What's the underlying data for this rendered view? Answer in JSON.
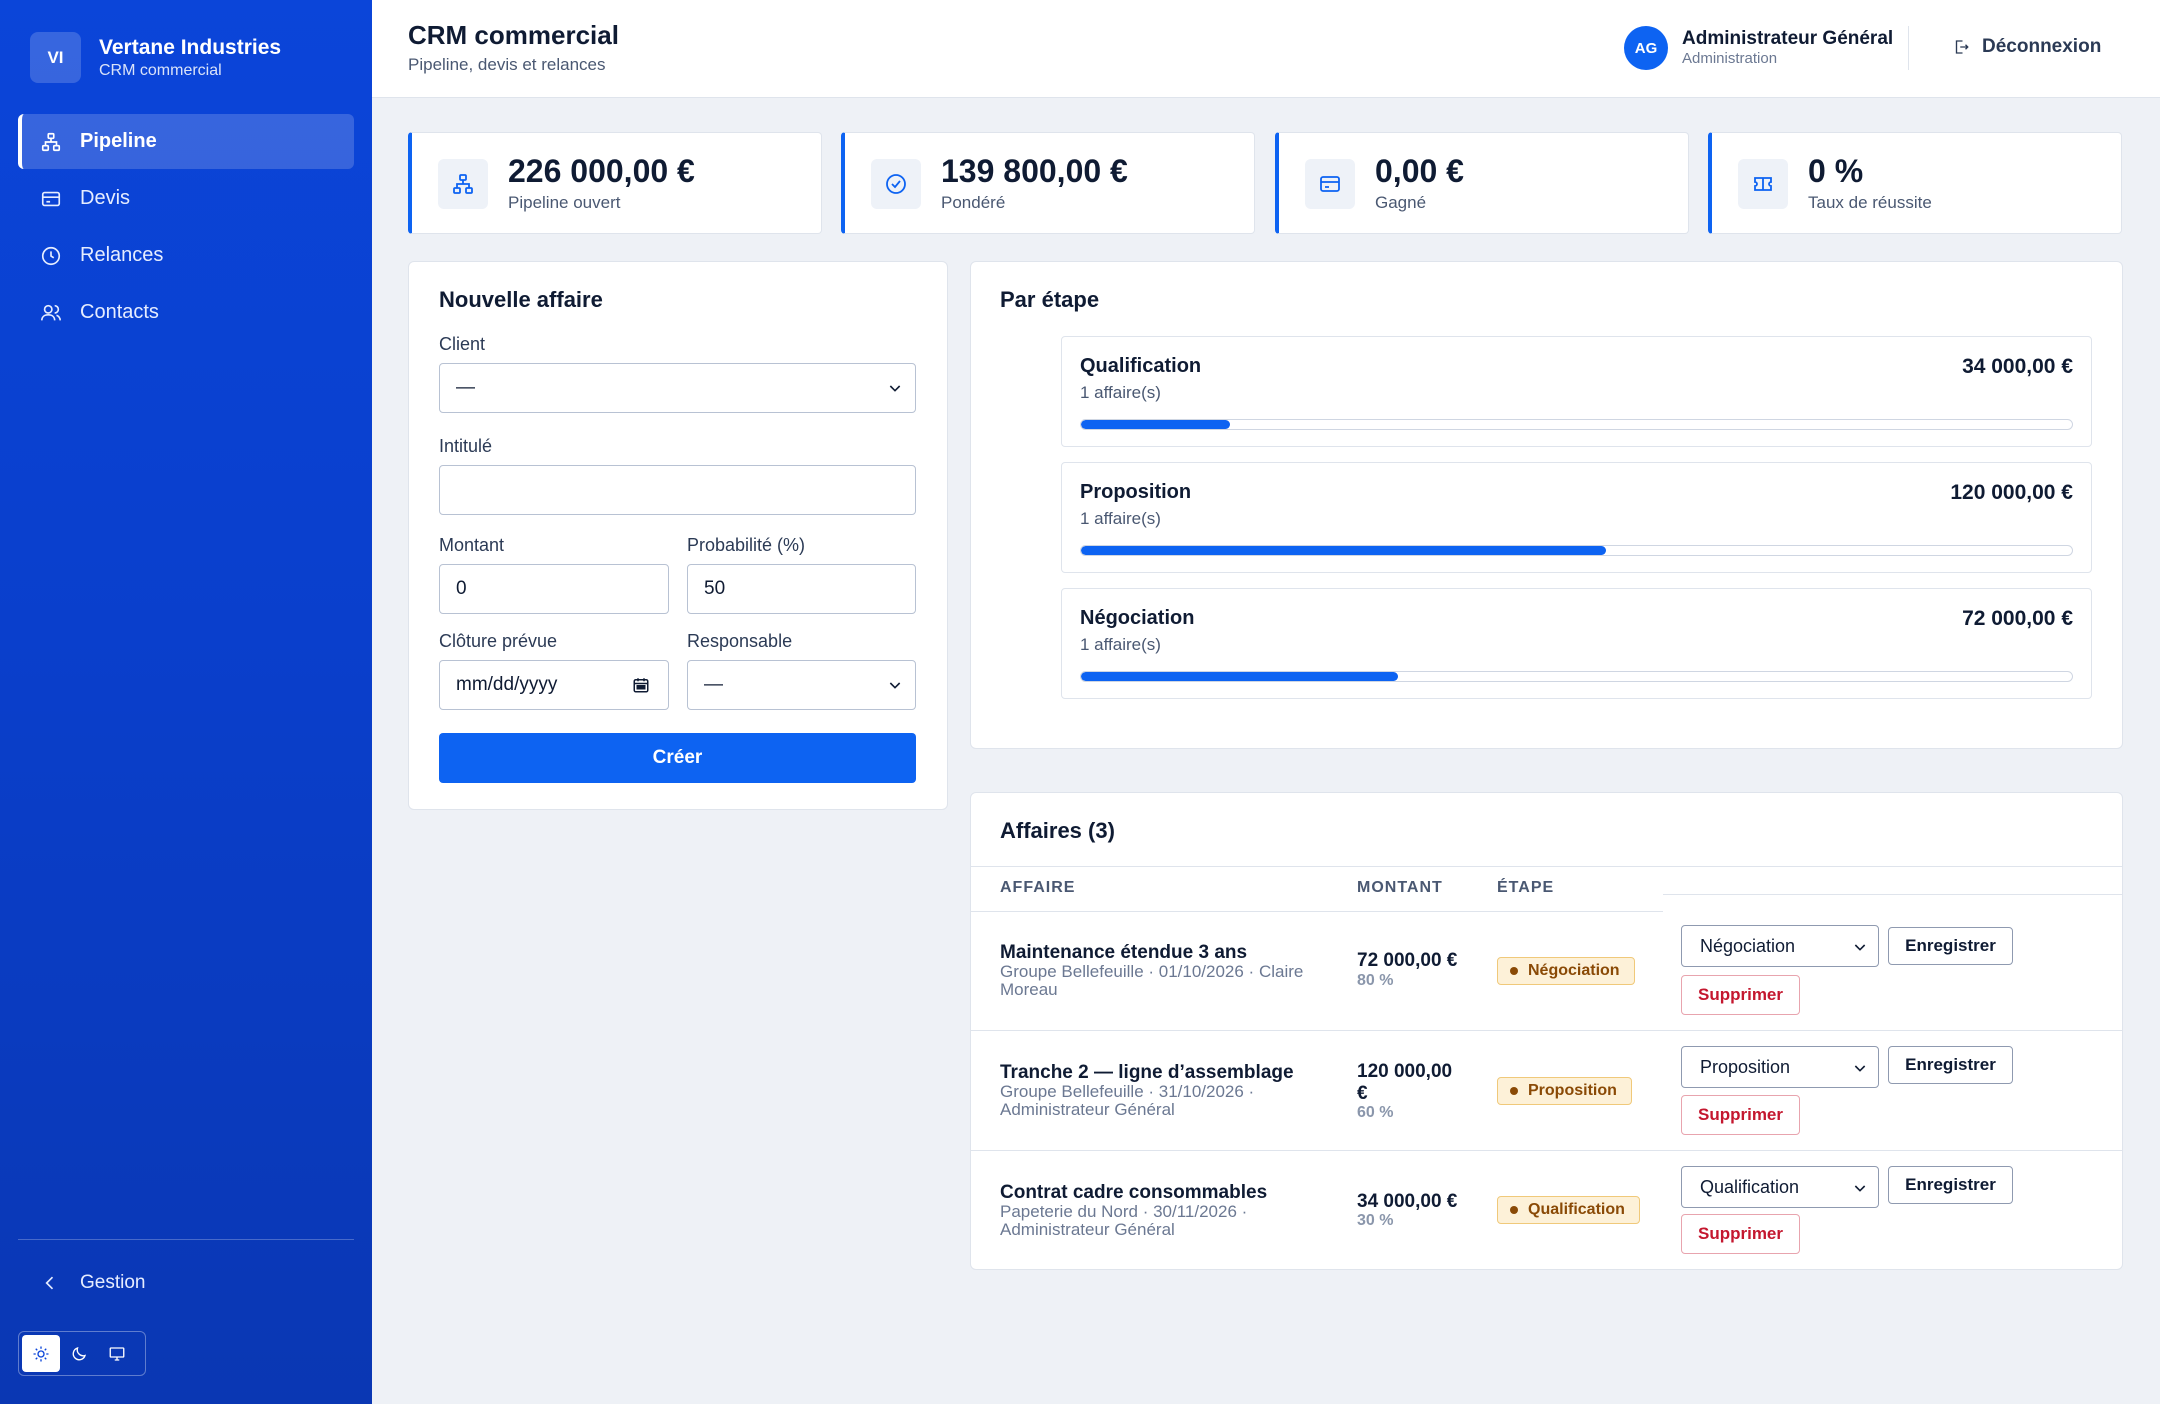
{
  "brand": {
    "initials": "VI",
    "name": "Vertane Industries",
    "subtitle": "CRM commercial"
  },
  "sidebar": {
    "items": [
      {
        "label": "Pipeline",
        "icon": "pipeline-icon",
        "active": true
      },
      {
        "label": "Devis",
        "icon": "card-icon",
        "active": false
      },
      {
        "label": "Relances",
        "icon": "clock-icon",
        "active": false
      },
      {
        "label": "Contacts",
        "icon": "users-icon",
        "active": false
      }
    ],
    "back_label": "Gestion",
    "theme_modes": [
      "light",
      "dark",
      "system"
    ],
    "theme_selected": "light"
  },
  "header": {
    "title": "CRM commercial",
    "subtitle": "Pipeline, devis et relances",
    "user": {
      "initials": "AG",
      "name": "Administrateur Général",
      "role": "Administration"
    },
    "logout_label": "Déconnexion"
  },
  "kpis": [
    {
      "value": "226 000,00 €",
      "label": "Pipeline ouvert",
      "icon": "pipeline-icon"
    },
    {
      "value": "139 800,00 €",
      "label": "Pondéré",
      "icon": "check-circle-icon"
    },
    {
      "value": "0,00 €",
      "label": "Gagné",
      "icon": "card-icon"
    },
    {
      "value": "0 %",
      "label": "Taux de réussite",
      "icon": "ticket-icon"
    }
  ],
  "form": {
    "title": "Nouvelle affaire",
    "client_label": "Client",
    "client_value": "—",
    "intitule_label": "Intitulé",
    "intitule_value": "",
    "montant_label": "Montant",
    "montant_value": "0",
    "probabilite_label": "Probabilité (%)",
    "probabilite_value": "50",
    "cloture_label": "Clôture prévue",
    "cloture_placeholder": "mm/dd/yyyy",
    "responsable_label": "Responsable",
    "responsable_value": "—",
    "submit_label": "Créer"
  },
  "stages": {
    "title": "Par étape",
    "items": [
      {
        "name": "Qualification",
        "count": "1 affaire(s)",
        "amount": "34 000,00 €",
        "share": 0.15
      },
      {
        "name": "Proposition",
        "count": "1 affaire(s)",
        "amount": "120 000,00 €",
        "share": 0.53
      },
      {
        "name": "Négociation",
        "count": "1 affaire(s)",
        "amount": "72 000,00 €",
        "share": 0.32
      }
    ]
  },
  "deals": {
    "title": "Affaires (3)",
    "columns": [
      "AFFAIRE",
      "MONTANT",
      "ÉTAPE"
    ],
    "save_label": "Enregistrer",
    "delete_label": "Supprimer",
    "rows": [
      {
        "title": "Maintenance étendue 3 ans",
        "meta": "Groupe Bellefeuille · 01/10/2026 · Claire Moreau",
        "amount": "72 000,00 €",
        "probability": "80 %",
        "stage": "Négociation",
        "select": "Négociation"
      },
      {
        "title": "Tranche 2 — ligne d’assemblage",
        "meta": "Groupe Bellefeuille · 31/10/2026 · Administrateur Général",
        "amount": "120 000,00 €",
        "probability": "60 %",
        "stage": "Proposition",
        "select": "Proposition"
      },
      {
        "title": "Contrat cadre consommables",
        "meta": "Papeterie du Nord · 30/11/2026 · Administrateur Général",
        "amount": "34 000,00 €",
        "probability": "30 %",
        "stage": "Qualification",
        "select": "Qualification"
      }
    ]
  },
  "colors": {
    "primary": "#0d63f2",
    "sidebar": "#0b45d9",
    "danger": "#c4172f",
    "badge_bg": "#fdf1d8"
  }
}
